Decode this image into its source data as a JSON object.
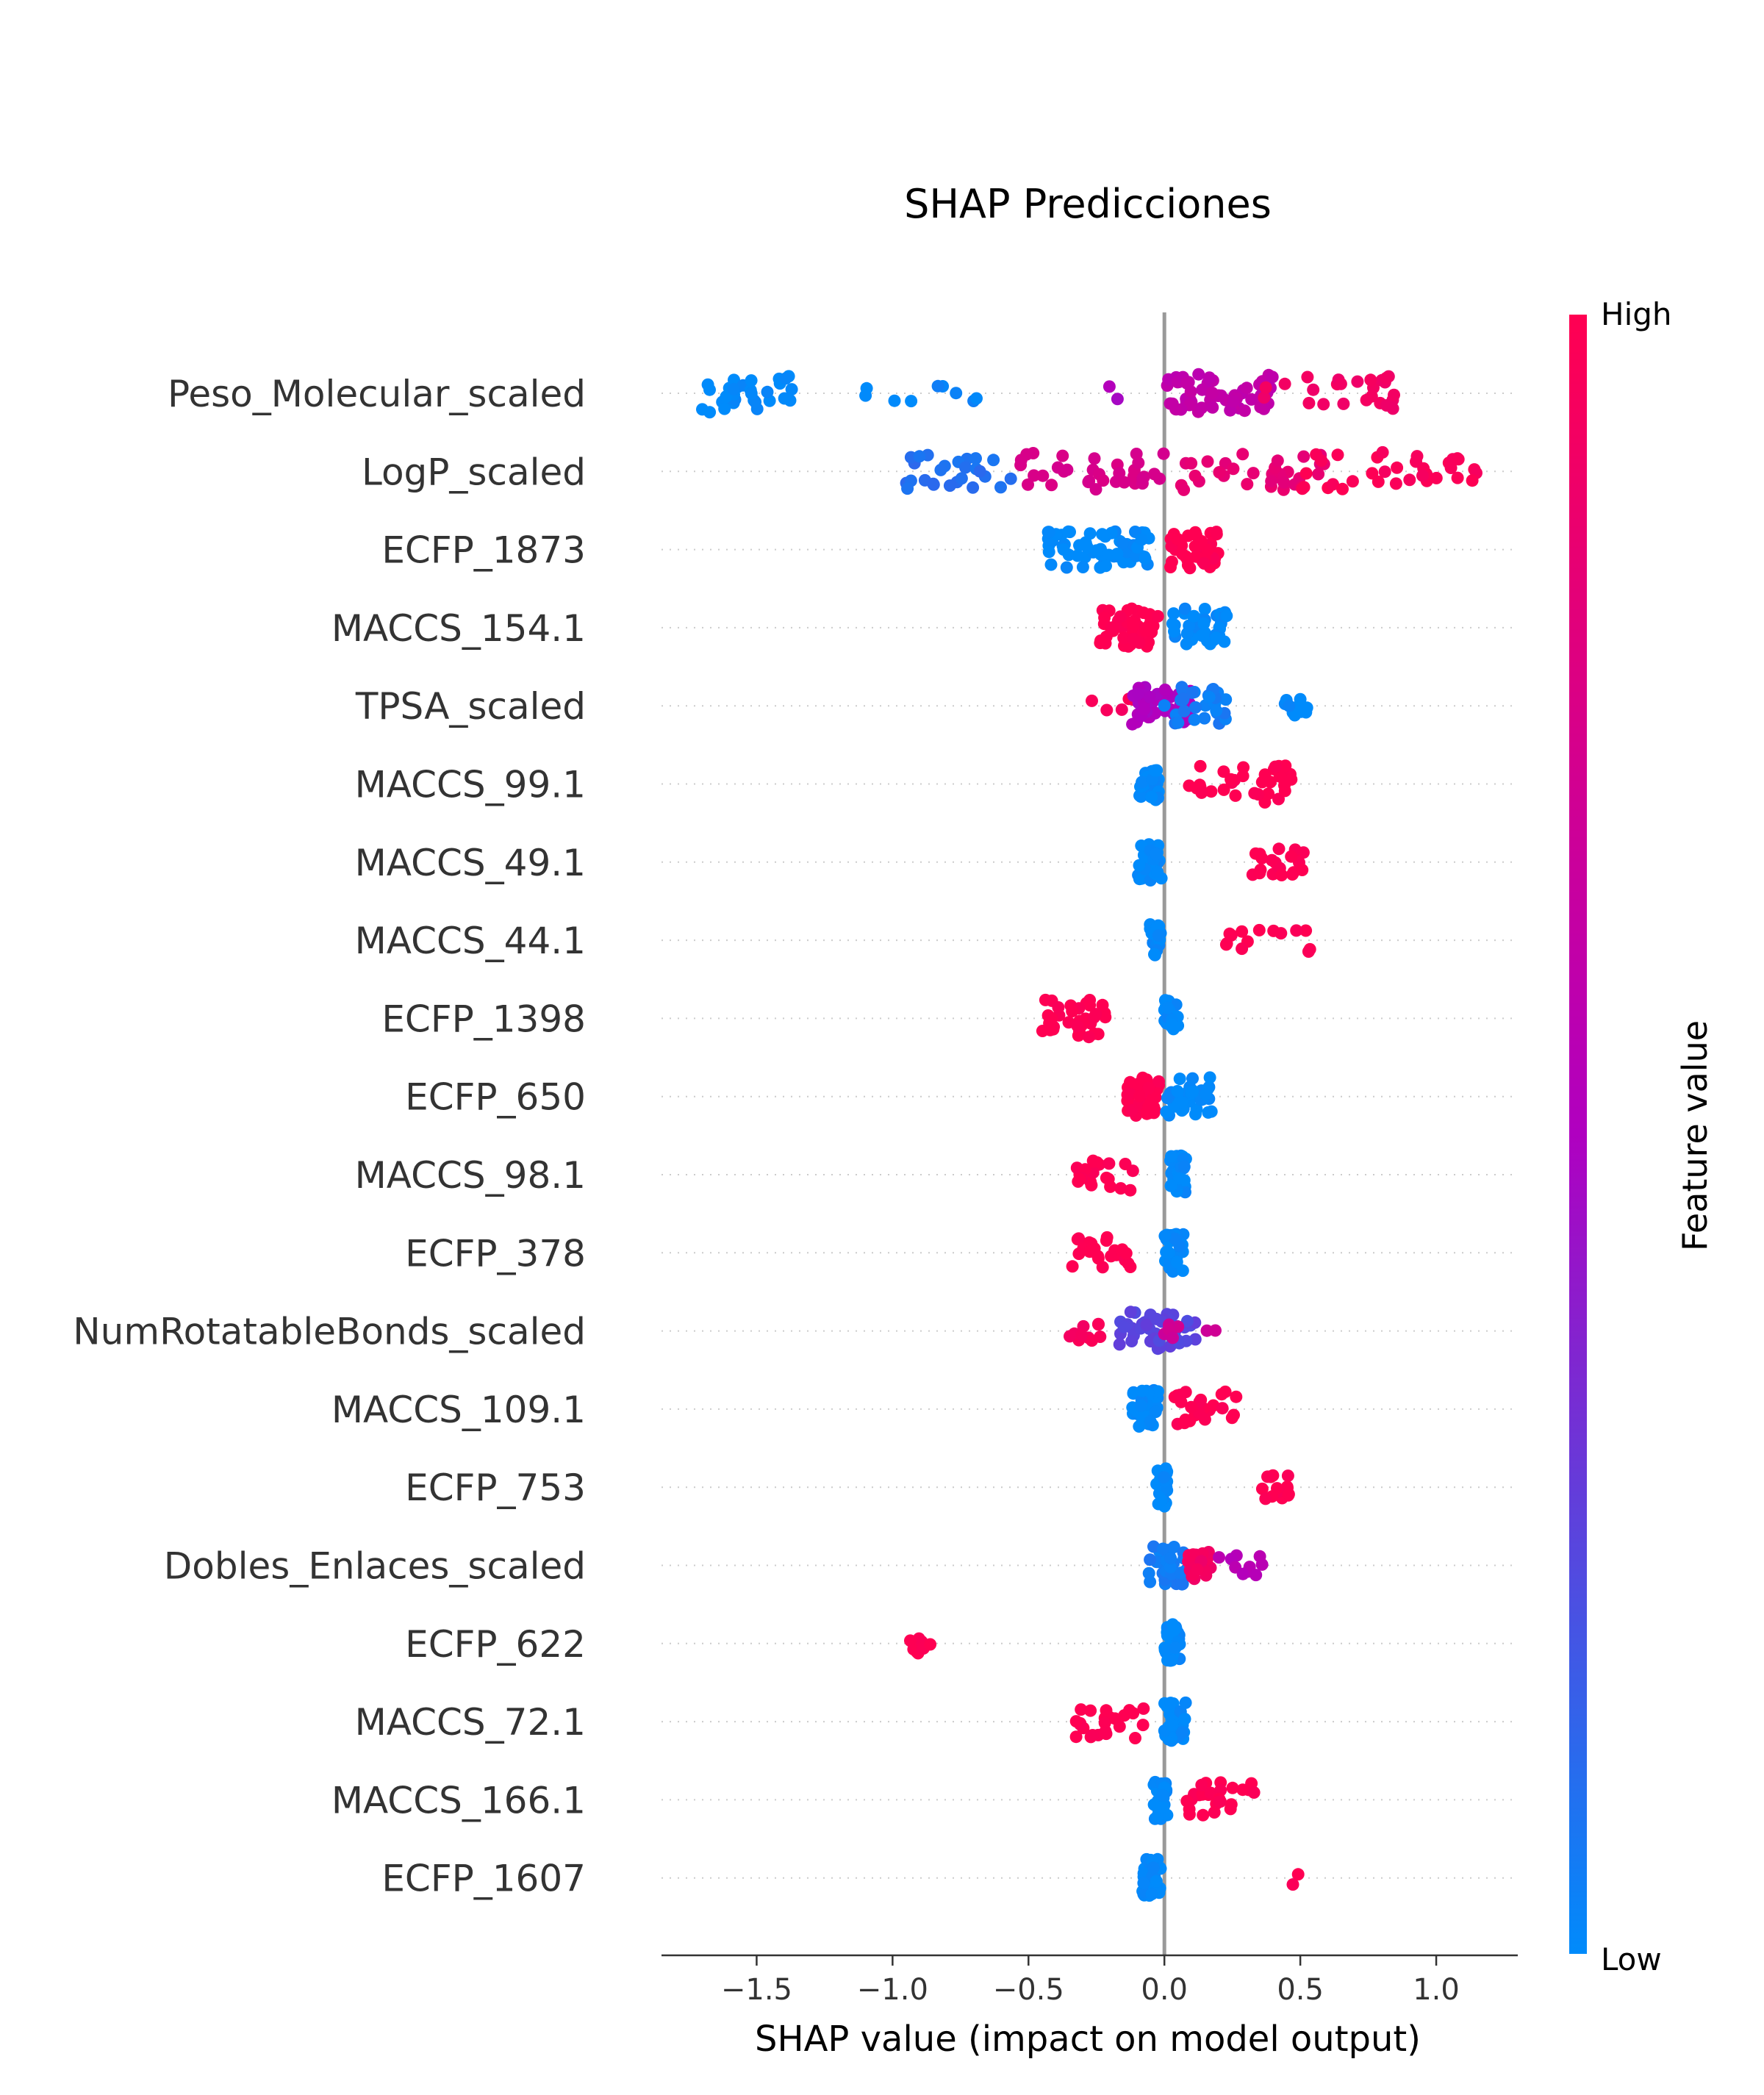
{
  "chart_data": {
    "type": "scatter",
    "title": "SHAP Predicciones",
    "xlabel": "SHAP value (impact on model output)",
    "xlim": [
      -1.85,
      1.3
    ],
    "xticks": [
      {
        "value": -1.5,
        "label": "−1.5"
      },
      {
        "value": -1.0,
        "label": "−1.0"
      },
      {
        "value": -0.5,
        "label": "−0.5"
      },
      {
        "value": 0.0,
        "label": "0.0"
      },
      {
        "value": 0.5,
        "label": "0.5"
      },
      {
        "value": 1.0,
        "label": "1.0"
      }
    ],
    "colorbar": {
      "label": "Feature value",
      "high_label": "High",
      "low_label": "Low",
      "low_color": "#008bfb",
      "mid_color": "#b000c0",
      "high_color": "#ff0052"
    },
    "features": [
      {
        "name": "Peso_Molecular_scaled",
        "groups": [
          {
            "from": -1.7,
            "to": -1.35,
            "n": 30,
            "v": 0.0
          },
          {
            "from": -1.1,
            "to": -0.65,
            "n": 9,
            "v": 0.02
          },
          {
            "from": -0.3,
            "to": -0.1,
            "n": 2,
            "v": 0.5
          },
          {
            "from": 0.0,
            "to": 0.4,
            "n": 60,
            "v": 0.6
          },
          {
            "from": 0.3,
            "to": 0.87,
            "n": 25,
            "v": 0.92
          }
        ]
      },
      {
        "name": "LogP_scaled",
        "groups": [
          {
            "from": -0.95,
            "to": -0.55,
            "n": 26,
            "v": 0.1
          },
          {
            "from": -0.6,
            "to": 0.0,
            "n": 34,
            "v": 0.75
          },
          {
            "from": 0.05,
            "to": 0.6,
            "n": 32,
            "v": 0.85
          },
          {
            "from": 0.5,
            "to": 1.15,
            "n": 34,
            "v": 0.97
          }
        ]
      },
      {
        "name": "ECFP_1873",
        "groups": [
          {
            "from": -0.43,
            "to": -0.05,
            "n": 60,
            "v": 0.0
          },
          {
            "from": 0.02,
            "to": 0.2,
            "n": 48,
            "v": 1.0
          }
        ]
      },
      {
        "name": "MACCS_154.1",
        "groups": [
          {
            "from": -0.25,
            "to": -0.02,
            "n": 44,
            "v": 1.0
          },
          {
            "from": 0.03,
            "to": 0.23,
            "n": 38,
            "v": 0.0
          }
        ]
      },
      {
        "name": "TPSA_scaled",
        "groups": [
          {
            "from": -0.27,
            "to": -0.1,
            "n": 6,
            "v": 0.96
          },
          {
            "from": -0.12,
            "to": 0.1,
            "n": 42,
            "v": 0.5
          },
          {
            "from": 0.0,
            "to": 0.23,
            "n": 30,
            "v": 0.05
          },
          {
            "from": 0.44,
            "to": 0.54,
            "n": 10,
            "v": 0.0
          }
        ]
      },
      {
        "name": "MACCS_99.1",
        "groups": [
          {
            "from": -0.1,
            "to": -0.02,
            "n": 28,
            "v": 0.0
          },
          {
            "from": 0.09,
            "to": 0.48,
            "n": 34,
            "v": 1.0
          }
        ]
      },
      {
        "name": "MACCS_49.1",
        "groups": [
          {
            "from": -0.1,
            "to": -0.01,
            "n": 34,
            "v": 0.0
          },
          {
            "from": 0.32,
            "to": 0.53,
            "n": 20,
            "v": 1.0
          }
        ]
      },
      {
        "name": "MACCS_44.1",
        "groups": [
          {
            "from": -0.06,
            "to": -0.01,
            "n": 24,
            "v": 0.0
          },
          {
            "from": 0.2,
            "to": 0.55,
            "n": 14,
            "v": 1.0
          }
        ]
      },
      {
        "name": "ECFP_1398",
        "groups": [
          {
            "from": -0.46,
            "to": -0.21,
            "n": 34,
            "v": 1.0
          },
          {
            "from": 0.0,
            "to": 0.05,
            "n": 30,
            "v": 0.0
          }
        ]
      },
      {
        "name": "ECFP_650",
        "groups": [
          {
            "from": -0.14,
            "to": -0.02,
            "n": 50,
            "v": 1.0
          },
          {
            "from": 0.0,
            "to": 0.18,
            "n": 40,
            "v": 0.0
          }
        ]
      },
      {
        "name": "MACCS_98.1",
        "groups": [
          {
            "from": -0.33,
            "to": -0.11,
            "n": 22,
            "v": 1.0
          },
          {
            "from": 0.02,
            "to": 0.08,
            "n": 40,
            "v": 0.0
          }
        ]
      },
      {
        "name": "ECFP_378",
        "groups": [
          {
            "from": -0.34,
            "to": -0.11,
            "n": 22,
            "v": 1.0
          },
          {
            "from": 0.0,
            "to": 0.07,
            "n": 40,
            "v": 0.0
          }
        ]
      },
      {
        "name": "NumRotatableBonds_scaled",
        "groups": [
          {
            "from": -0.35,
            "to": -0.22,
            "n": 10,
            "v": 0.95
          },
          {
            "from": -0.17,
            "to": 0.12,
            "n": 46,
            "v": 0.25
          },
          {
            "from": 0.0,
            "to": 0.22,
            "n": 8,
            "v": 0.7
          }
        ]
      },
      {
        "name": "MACCS_109.1",
        "groups": [
          {
            "from": -0.12,
            "to": -0.02,
            "n": 36,
            "v": 0.0
          },
          {
            "from": 0.03,
            "to": 0.28,
            "n": 26,
            "v": 1.0
          }
        ]
      },
      {
        "name": "ECFP_753",
        "groups": [
          {
            "from": -0.03,
            "to": 0.01,
            "n": 30,
            "v": 0.0
          },
          {
            "from": 0.35,
            "to": 0.47,
            "n": 14,
            "v": 1.0
          }
        ]
      },
      {
        "name": "Dobles_Enlaces_scaled",
        "groups": [
          {
            "from": -0.06,
            "to": 0.08,
            "n": 34,
            "v": 0.05
          },
          {
            "from": 0.08,
            "to": 0.18,
            "n": 18,
            "v": 0.92
          },
          {
            "from": 0.18,
            "to": 0.37,
            "n": 10,
            "v": 0.55
          }
        ]
      },
      {
        "name": "ECFP_622",
        "groups": [
          {
            "from": -0.94,
            "to": -0.85,
            "n": 10,
            "v": 1.0
          },
          {
            "from": 0.0,
            "to": 0.06,
            "n": 36,
            "v": 0.0
          }
        ]
      },
      {
        "name": "MACCS_72.1",
        "groups": [
          {
            "from": -0.33,
            "to": -0.06,
            "n": 24,
            "v": 1.0
          },
          {
            "from": 0.0,
            "to": 0.08,
            "n": 40,
            "v": 0.0
          }
        ]
      },
      {
        "name": "MACCS_166.1",
        "groups": [
          {
            "from": -0.04,
            "to": 0.01,
            "n": 36,
            "v": 0.0
          },
          {
            "from": 0.08,
            "to": 0.33,
            "n": 26,
            "v": 1.0
          }
        ]
      },
      {
        "name": "ECFP_1607",
        "groups": [
          {
            "from": -0.08,
            "to": -0.01,
            "n": 40,
            "v": 0.0
          },
          {
            "from": 0.47,
            "to": 0.5,
            "n": 2,
            "v": 1.0
          }
        ]
      }
    ]
  }
}
